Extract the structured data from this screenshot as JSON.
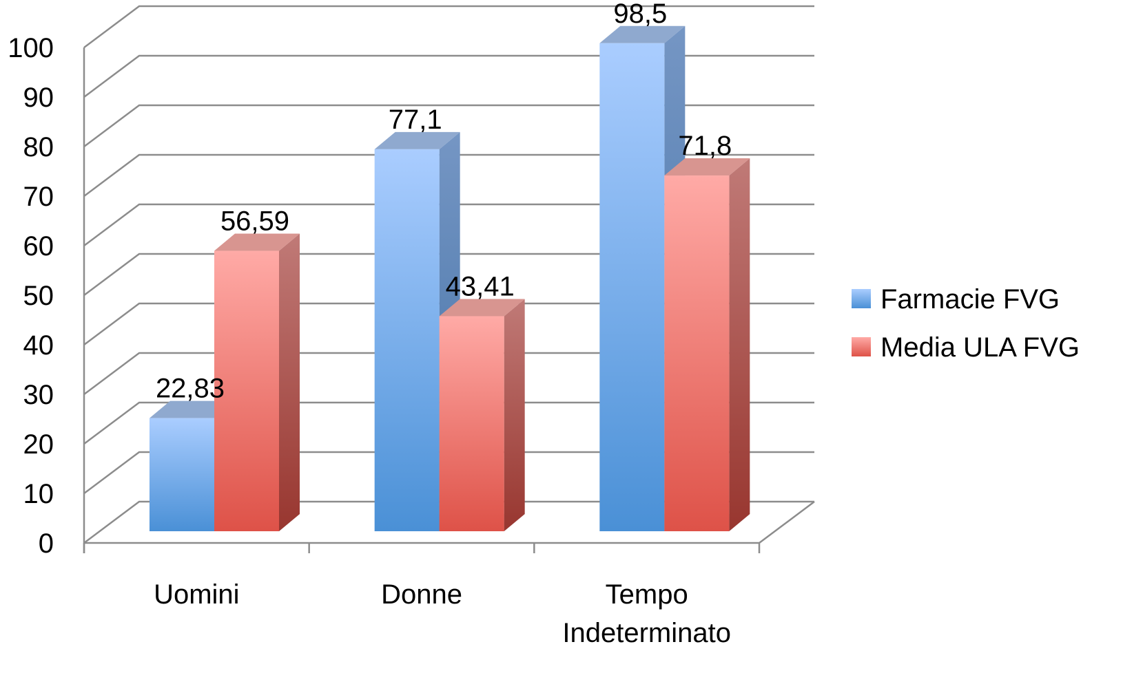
{
  "chart_data": {
    "type": "bar",
    "style": "3d-clustered-column",
    "title": "",
    "xlabel": "",
    "ylabel": "",
    "categories": [
      "Uomini",
      "Donne",
      "Tempo Indeterminato"
    ],
    "series": [
      {
        "name": "Farmacie FVG",
        "values": [
          22.83,
          77.1,
          98.5
        ],
        "labels": [
          "22,83",
          "77,1",
          "98,5"
        ],
        "color": "#4f8fd6"
      },
      {
        "name": "Media ULA FVG",
        "values": [
          56.59,
          43.41,
          71.8
        ],
        "labels": [
          "56,59",
          "43,41",
          "71,8"
        ],
        "color": "#e0554d"
      }
    ],
    "ylim": [
      0,
      100
    ],
    "yticks": [
      "0",
      "10",
      "20",
      "30",
      "40",
      "50",
      "60",
      "70",
      "80",
      "90",
      "100"
    ],
    "grid": true,
    "legend_position": "right"
  }
}
